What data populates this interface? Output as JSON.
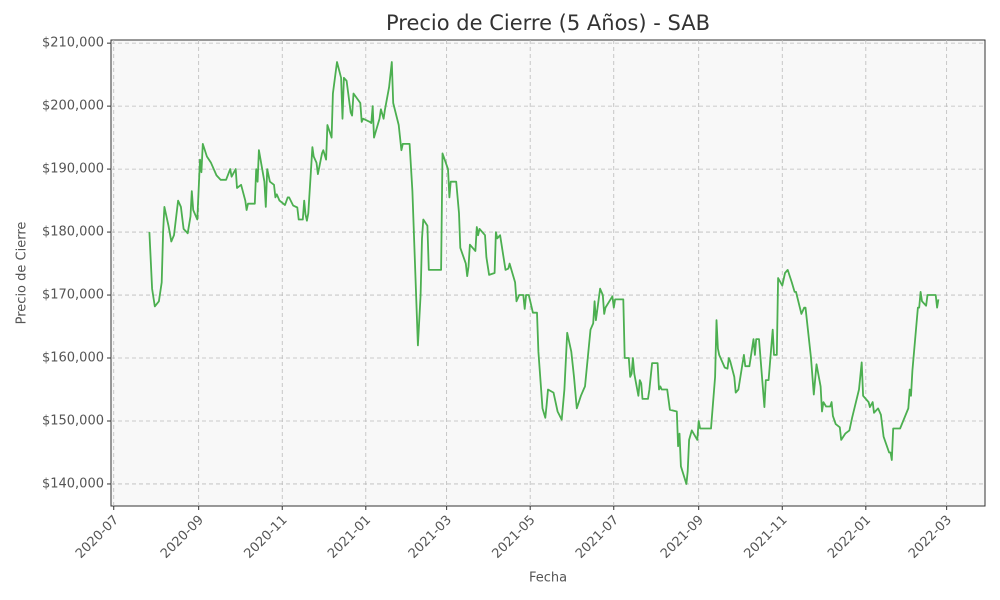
{
  "chart_data": {
    "type": "line",
    "title": "Precio de Cierre (5 Años) - SAB",
    "x_label": "Fecha",
    "y_label": "Precio de Cierre",
    "color": "#4caf50",
    "grid": true,
    "x": [
      "2020-07-27",
      "2020-07-29",
      "2020-07-31",
      "2020-08-03",
      "2020-08-05",
      "2020-08-06",
      "2020-08-07",
      "2020-08-10",
      "2020-08-12",
      "2020-08-14",
      "2020-08-17",
      "2020-08-19",
      "2020-08-21",
      "2020-08-24",
      "2020-08-26",
      "2020-08-27",
      "2020-08-28",
      "2020-08-31",
      "2020-09-02",
      "2020-09-03",
      "2020-09-04",
      "2020-09-07",
      "2020-09-10",
      "2020-09-14",
      "2020-09-17",
      "2020-09-21",
      "2020-09-24",
      "2020-09-25",
      "2020-09-28",
      "2020-09-29",
      "2020-10-02",
      "2020-10-05",
      "2020-10-06",
      "2020-10-07",
      "2020-10-12",
      "2020-10-13",
      "2020-10-14",
      "2020-10-15",
      "2020-10-19",
      "2020-10-20",
      "2020-10-21",
      "2020-10-23",
      "2020-10-26",
      "2020-10-27",
      "2020-10-28",
      "2020-10-30",
      "2020-11-03",
      "2020-11-05",
      "2020-11-06",
      "2020-11-09",
      "2020-11-12",
      "2020-11-13",
      "2020-11-16",
      "2020-11-17",
      "2020-11-18",
      "2020-11-19",
      "2020-11-20",
      "2020-11-23",
      "2020-11-24",
      "2020-11-26",
      "2020-11-27",
      "2020-11-30",
      "2020-12-01",
      "2020-12-03",
      "2020-12-04",
      "2020-12-07",
      "2020-12-08",
      "2020-12-11",
      "2020-12-14",
      "2020-12-15",
      "2020-12-16",
      "2020-12-18",
      "2020-12-21",
      "2020-12-22",
      "2020-12-23",
      "2020-12-28",
      "2020-12-29",
      "2020-12-30",
      "2021-01-04",
      "2021-01-05",
      "2021-01-06",
      "2021-01-07",
      "2021-01-11",
      "2021-01-12",
      "2021-01-14",
      "2021-01-15",
      "2021-01-18",
      "2021-01-20",
      "2021-01-21",
      "2021-01-25",
      "2021-01-27",
      "2021-01-28",
      "2021-02-02",
      "2021-02-04",
      "2021-02-08",
      "2021-02-10",
      "2021-02-11",
      "2021-02-12",
      "2021-02-15",
      "2021-02-16",
      "2021-02-25",
      "2021-02-26",
      "2021-03-02",
      "2021-03-03",
      "2021-03-04",
      "2021-03-08",
      "2021-03-10",
      "2021-03-11",
      "2021-03-15",
      "2021-03-16",
      "2021-03-17",
      "2021-03-18",
      "2021-03-22",
      "2021-03-23",
      "2021-03-24",
      "2021-03-25",
      "2021-03-29",
      "2021-03-30",
      "2021-04-01",
      "2021-04-05",
      "2021-04-06",
      "2021-04-07",
      "2021-04-09",
      "2021-04-13",
      "2021-04-15",
      "2021-04-16",
      "2021-04-20",
      "2021-04-21",
      "2021-04-23",
      "2021-04-26",
      "2021-04-27",
      "2021-04-28",
      "2021-04-30",
      "2021-05-03",
      "2021-05-06",
      "2021-05-07",
      "2021-05-10",
      "2021-05-12",
      "2021-05-13",
      "2021-05-14",
      "2021-05-18",
      "2021-05-21",
      "2021-05-24",
      "2021-05-26",
      "2021-05-28",
      "2021-05-31",
      "2021-06-02",
      "2021-06-04",
      "2021-06-07",
      "2021-06-09",
      "2021-06-10",
      "2021-06-14",
      "2021-06-16",
      "2021-06-17",
      "2021-06-18",
      "2021-06-21",
      "2021-06-23",
      "2021-06-24",
      "2021-06-25",
      "2021-06-30",
      "2021-07-01",
      "2021-07-02",
      "2021-07-08",
      "2021-07-09",
      "2021-07-12",
      "2021-07-13",
      "2021-07-14",
      "2021-07-15",
      "2021-07-16",
      "2021-07-19",
      "2021-07-20",
      "2021-07-21",
      "2021-07-22",
      "2021-07-26",
      "2021-07-27",
      "2021-07-29",
      "2021-08-02",
      "2021-08-03",
      "2021-08-04",
      "2021-08-05",
      "2021-08-09",
      "2021-08-11",
      "2021-08-16",
      "2021-08-17",
      "2021-08-18",
      "2021-08-19",
      "2021-08-23",
      "2021-08-24",
      "2021-08-25",
      "2021-08-27",
      "2021-08-31",
      "2021-09-01",
      "2021-09-02",
      "2021-09-10",
      "2021-09-13",
      "2021-09-14",
      "2021-09-15",
      "2021-09-16",
      "2021-09-20",
      "2021-09-22",
      "2021-09-23",
      "2021-09-24",
      "2021-09-27",
      "2021-09-28",
      "2021-09-30",
      "2021-10-04",
      "2021-10-05",
      "2021-10-08",
      "2021-10-11",
      "2021-10-12",
      "2021-10-13",
      "2021-10-15",
      "2021-10-19",
      "2021-10-20",
      "2021-10-22",
      "2021-10-25",
      "2021-10-26",
      "2021-10-28",
      "2021-10-29",
      "2021-11-01",
      "2021-11-03",
      "2021-11-05",
      "2021-11-08",
      "2021-11-10",
      "2021-11-11",
      "2021-11-15",
      "2021-11-17",
      "2021-11-18",
      "2021-11-22",
      "2021-11-24",
      "2021-11-26",
      "2021-11-29",
      "2021-11-30",
      "2021-12-01",
      "2021-12-03",
      "2021-12-06",
      "2021-12-07",
      "2021-12-08",
      "2021-12-10",
      "2021-12-13",
      "2021-12-14",
      "2021-12-17",
      "2021-12-20",
      "2021-12-22",
      "2021-12-27",
      "2021-12-29",
      "2021-12-30",
      "2022-01-03",
      "2022-01-04",
      "2022-01-06",
      "2022-01-07",
      "2022-01-10",
      "2022-01-12",
      "2022-01-14",
      "2022-01-18",
      "2022-01-19",
      "2022-01-20",
      "2022-01-21",
      "2022-01-26",
      "2022-02-01",
      "2022-02-02",
      "2022-02-03",
      "2022-02-04",
      "2022-02-08",
      "2022-02-09",
      "2022-02-10",
      "2022-02-11",
      "2022-02-14",
      "2022-02-15",
      "2022-02-21",
      "2022-02-22",
      "2022-02-23"
    ],
    "values": [
      180000,
      171000,
      168200,
      169000,
      172000,
      180000,
      184000,
      181000,
      178500,
      179500,
      185000,
      184000,
      180500,
      179800,
      182500,
      186500,
      183500,
      182000,
      191500,
      189500,
      194000,
      192000,
      191000,
      189000,
      188300,
      188300,
      190000,
      188800,
      190000,
      187000,
      187500,
      185000,
      183500,
      184500,
      184500,
      190000,
      188000,
      193000,
      188000,
      184000,
      190000,
      188000,
      187500,
      185500,
      186000,
      185000,
      184300,
      185500,
      185500,
      184200,
      183900,
      182000,
      182000,
      185000,
      182800,
      181800,
      183000,
      193500,
      192000,
      191000,
      189200,
      192500,
      193000,
      191500,
      197000,
      195000,
      202000,
      207000,
      204500,
      198000,
      204500,
      204000,
      199000,
      198500,
      202000,
      200500,
      197500,
      198000,
      197500,
      197300,
      200000,
      195000,
      198000,
      199500,
      198000,
      199500,
      203000,
      207000,
      200500,
      197000,
      193000,
      194000,
      194000,
      186500,
      162000,
      170000,
      179000,
      182000,
      181000,
      174000,
      174000,
      192500,
      190000,
      185500,
      188000,
      188000,
      183000,
      177500,
      175000,
      173000,
      174500,
      178000,
      177000,
      180800,
      179500,
      180500,
      179500,
      176000,
      173200,
      173500,
      180000,
      179000,
      179500,
      174000,
      174200,
      175000,
      172000,
      169000,
      170000,
      170000,
      167800,
      170000,
      170000,
      167200,
      167200,
      161000,
      152000,
      150500,
      152500,
      155000,
      154500,
      151500,
      150200,
      155000,
      164000,
      161000,
      157000,
      152000,
      154000,
      155000,
      155500,
      164500,
      165500,
      169000,
      166000,
      171000,
      170000,
      167000,
      168000,
      169800,
      168000,
      169300,
      169300,
      160000,
      160000,
      157000,
      157500,
      160000,
      157500,
      154000,
      156500,
      156000,
      153500,
      153500,
      155000,
      159200,
      159200,
      155000,
      155500,
      155000,
      155000,
      151800,
      151500,
      146000,
      148000,
      142800,
      140000,
      142000,
      147000,
      148500,
      147000,
      150000,
      148800,
      148800,
      157000,
      166000,
      161500,
      160500,
      158500,
      158300,
      160000,
      159500,
      157000,
      154500,
      155000,
      160500,
      158700,
      158700,
      163000,
      160500,
      163000,
      163000,
      152200,
      156500,
      156500,
      164500,
      160500,
      160500,
      172700,
      171500,
      173500,
      174000,
      172000,
      170500,
      170500,
      167000,
      168000,
      168000,
      160000,
      154200,
      159000,
      155500,
      151500,
      153000,
      152300,
      152300,
      153000,
      150800,
      149500,
      149000,
      147000,
      148000,
      148500,
      150500,
      155000,
      159300,
      154000,
      153000,
      152200,
      153000,
      151300,
      152000,
      151000,
      147500,
      145000,
      145000,
      143800,
      148800,
      148800,
      152000,
      155000,
      154000,
      158000,
      168000,
      168000,
      170500,
      169000,
      168300,
      170000,
      170000,
      168000,
      169300
    ],
    "xlim": [
      "2020-06-29",
      "2022-03-29"
    ],
    "xticks": [
      "2020-07",
      "2020-09",
      "2020-11",
      "2021-01",
      "2021-03",
      "2021-05",
      "2021-07",
      "2021-09",
      "2021-11",
      "2022-01",
      "2022-03"
    ],
    "ylim": [
      136500,
      210500
    ],
    "yticks": [
      {
        "value": 140000,
        "label": "$140,000"
      },
      {
        "value": 150000,
        "label": "$150,000"
      },
      {
        "value": 160000,
        "label": "$160,000"
      },
      {
        "value": 170000,
        "label": "$170,000"
      },
      {
        "value": 180000,
        "label": "$180,000"
      },
      {
        "value": 190000,
        "label": "$190,000"
      },
      {
        "value": 200000,
        "label": "$200,000"
      },
      {
        "value": 210000,
        "label": "$210,000"
      }
    ]
  }
}
